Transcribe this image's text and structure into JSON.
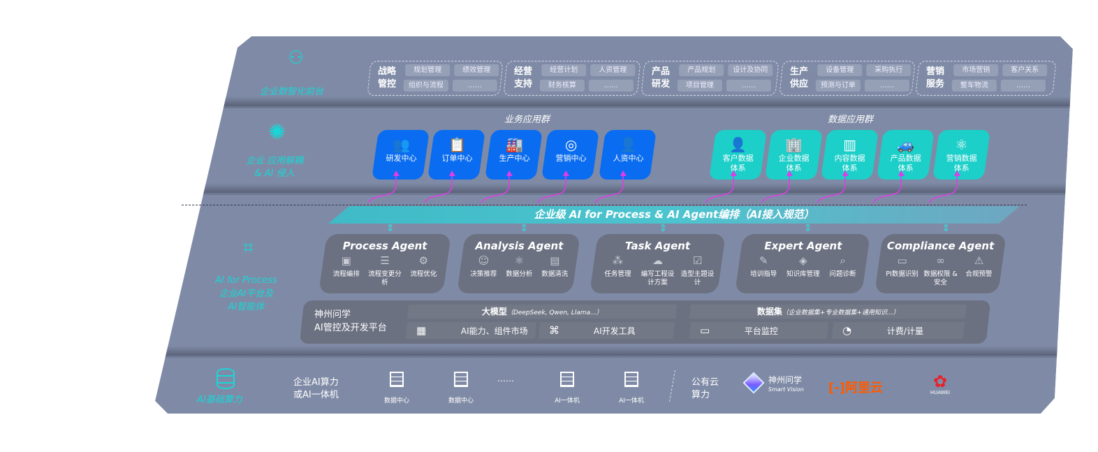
{
  "layers": {
    "front": {
      "label": "企业数智化前台",
      "icon": "brain-icon",
      "groups": [
        {
          "title": "战略管控",
          "items": [
            "规划管理",
            "绩效管理",
            "组织与流程",
            "……"
          ]
        },
        {
          "title": "经营支持",
          "items": [
            "经营计划",
            "人资管理",
            "财务核算",
            "……"
          ]
        },
        {
          "title": "产品研发",
          "items": [
            "产品规划",
            "设计及协同",
            "项目管理",
            "……"
          ]
        },
        {
          "title": "生产供应",
          "items": [
            "设备管理",
            "采购执行",
            "预测与订单",
            "……"
          ]
        },
        {
          "title": "营销服务",
          "items": [
            "市场营销",
            "客户关系",
            "整车物流",
            "……"
          ]
        }
      ]
    },
    "apps": {
      "label_line1": "企业 应用解耦",
      "label_line2": "& AI 侵入",
      "icon": "molecule-icon",
      "business_title": "业务应用群",
      "data_title": "数据应用群",
      "business": [
        {
          "label": "研发中心",
          "icon": "users-icon"
        },
        {
          "label": "订单中心",
          "icon": "clipboard-icon"
        },
        {
          "label": "生产中心",
          "icon": "factory-icon"
        },
        {
          "label": "营销中心",
          "icon": "target-icon"
        },
        {
          "label": "人资中心",
          "icon": "person-icon"
        }
      ],
      "data": [
        {
          "label": "客户数据",
          "label2": "体系",
          "icon": "user-icon"
        },
        {
          "label": "企业数据",
          "label2": "体系",
          "icon": "building-icon"
        },
        {
          "label": "内容数据",
          "label2": "体系",
          "icon": "books-icon"
        },
        {
          "label": "产品数据",
          "label2": "体系",
          "icon": "car-icon"
        },
        {
          "label": "营销数据",
          "label2": "体系",
          "icon": "atom-icon"
        }
      ],
      "business_color": "#0a6cf0",
      "data_color": "#1ccfc9",
      "arrow_color": "#e23be8"
    },
    "ai": {
      "label_line1": "AI for Process",
      "label_line2": "企业AI平台及",
      "label_line3": "AI智能体",
      "icon": "face-scan-icon",
      "banner": "企业级 AI for Process & AI Agent编排（AI接入规范）",
      "agents": [
        {
          "title": "Process Agent",
          "items": [
            {
              "l": "流程编排",
              "i": "flow-chart-icon"
            },
            {
              "l": "流程变更分析",
              "i": "list-icon"
            },
            {
              "l": "流程优化",
              "i": "optimize-icon"
            }
          ]
        },
        {
          "title": "Analysis Agent",
          "items": [
            {
              "l": "决策推荐",
              "i": "head-icon"
            },
            {
              "l": "数据分析",
              "i": "atom-icon"
            },
            {
              "l": "数据清洗",
              "i": "clean-icon"
            }
          ]
        },
        {
          "title": "Task Agent",
          "items": [
            {
              "l": "任务管理",
              "i": "network-icon"
            },
            {
              "l": "编写工程设计方案",
              "i": "cloud-icon"
            },
            {
              "l": "造型主题设计",
              "i": "checklist-icon"
            }
          ]
        },
        {
          "title": "Expert Agent",
          "items": [
            {
              "l": "培训指导",
              "i": "wand-icon"
            },
            {
              "l": "知识库管理",
              "i": "layers-icon"
            },
            {
              "l": "问题诊断",
              "i": "diagnose-icon"
            }
          ]
        },
        {
          "title": "Compliance Agent",
          "items": [
            {
              "l": "PI数据识别",
              "i": "id-card-icon"
            },
            {
              "l": "数据权限 & 安全",
              "i": "link-icon"
            },
            {
              "l": "合规预警",
              "i": "warning-icon"
            }
          ]
        }
      ],
      "platform": {
        "name_line1": "神州问学",
        "name_line2": "AI管控及开发平台",
        "model_bar": "大模型",
        "model_note": "（DeepSeek, Qwen, Llama...）",
        "dataset_bar": "数据集",
        "dataset_note": "（企业数据集+专业数据集+通用知识...）",
        "tools": [
          {
            "l": "AI能力、组件市场",
            "i": "market-icon"
          },
          {
            "l": "AI开发工具",
            "i": "dev-tool-icon"
          },
          {
            "l": "平台监控",
            "i": "monitor-icon"
          },
          {
            "l": "计费/计量",
            "i": "gauge-icon"
          }
        ]
      }
    },
    "compute": {
      "label": "AI基础算力",
      "icon": "database-icon",
      "onprem_line1": "企业AI算力",
      "onprem_line2": "或AI一体机",
      "servers": [
        "数据中心",
        "数据中心",
        "AI一体机",
        "AI一体机"
      ],
      "ellipsis": "……",
      "cloud_line1": "公有云",
      "cloud_line2": "算力",
      "vendors": {
        "smartvision_cn": "神州问学",
        "smartvision_en": "Smart Vision",
        "aliyun": "阿里云",
        "huawei": "HUAWEI"
      }
    }
  }
}
